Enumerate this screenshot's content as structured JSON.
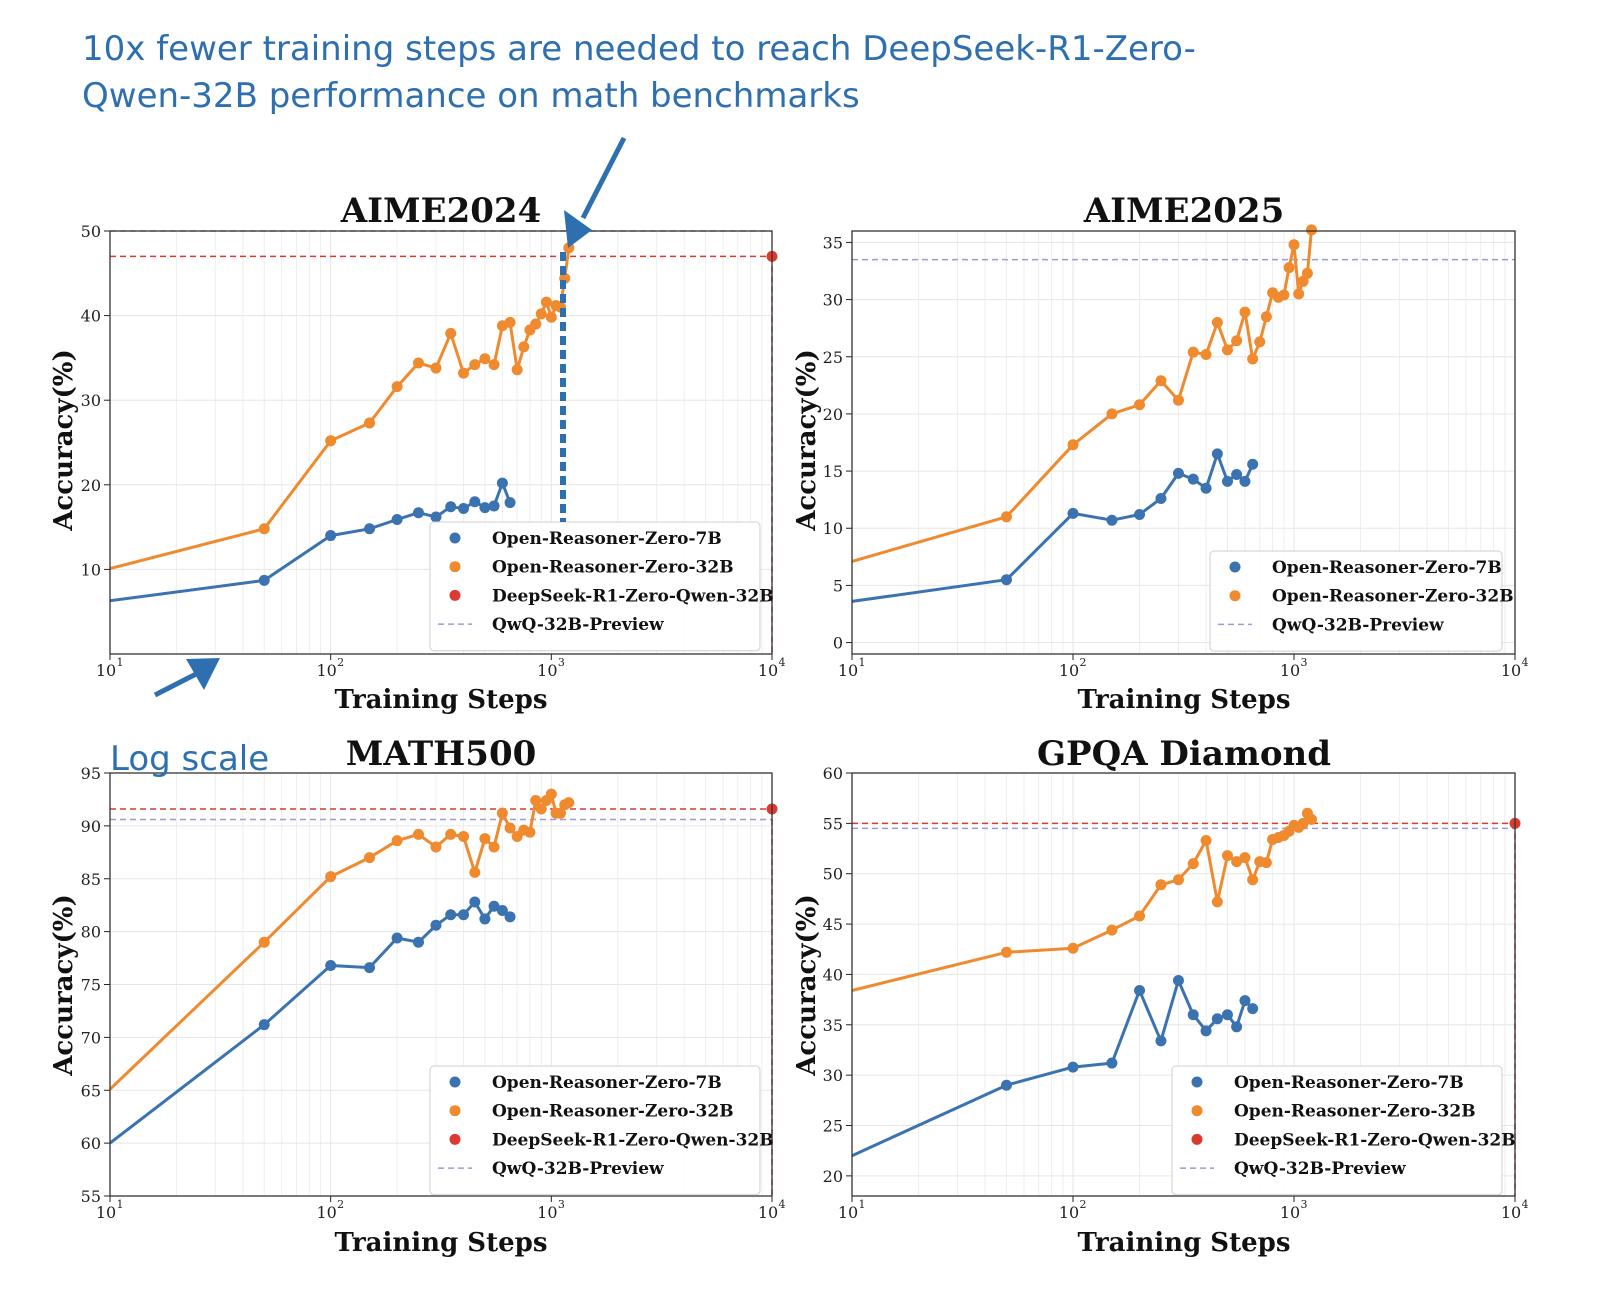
{
  "headline": {
    "line1": "10x fewer training steps are needed to reach DeepSeek-R1-Zero-",
    "line2": "Qwen-32B performance on math benchmarks"
  },
  "annotation_note": "Log scale",
  "colors": {
    "open7b": "#3b72b0",
    "open32b": "#ef8a2e",
    "deepseek": "#dc3a2e",
    "qwq": "#9a9ad8",
    "annotation": "#2e6fb0",
    "grid": "#e6e6e6"
  },
  "chart_data": [
    {
      "type": "line",
      "title": "AIME2024",
      "xlabel": "Training Steps",
      "ylabel": "Accuracy(%)",
      "xscale": "log",
      "xlim": [
        10,
        10000
      ],
      "ylim": [
        0,
        50
      ],
      "yticks": [
        10,
        20,
        30,
        40,
        50
      ],
      "grid": true,
      "legend_position": "lower-right",
      "series": [
        {
          "name": "Open-Reasoner-Zero-7B",
          "color_key": "open7b",
          "x0": 10,
          "y0": 6.3,
          "x": [
            50,
            100,
            150,
            200,
            250,
            300,
            350,
            400,
            450,
            500,
            550,
            600,
            650
          ],
          "y": [
            8.7,
            14.0,
            14.8,
            15.9,
            16.7,
            16.2,
            17.4,
            17.2,
            18.0,
            17.3,
            17.5,
            20.2,
            17.9
          ]
        },
        {
          "name": "Open-Reasoner-Zero-32B",
          "color_key": "open32b",
          "x0": 10,
          "y0": 10.1,
          "x": [
            50,
            100,
            150,
            200,
            250,
            300,
            350,
            400,
            450,
            500,
            550,
            600,
            650,
            700,
            750,
            800,
            850,
            900,
            950,
            1000,
            1050,
            1100,
            1150,
            1200
          ],
          "y": [
            14.8,
            25.2,
            27.3,
            31.6,
            34.4,
            33.8,
            37.9,
            33.2,
            34.2,
            34.9,
            34.2,
            38.8,
            39.2,
            33.6,
            36.3,
            38.3,
            39.0,
            40.2,
            41.6,
            39.8,
            41.2,
            41.0,
            44.4,
            48.0
          ]
        }
      ],
      "reference_points": [
        {
          "name": "DeepSeek-R1-Zero-Qwen-32B",
          "color_key": "deepseek",
          "x": 10000,
          "y": 47.0
        }
      ],
      "reference_lines": [
        {
          "name": "QwQ-32B-Preview",
          "color_key": "qwq",
          "y": 50.0
        }
      ],
      "legend": [
        "Open-Reasoner-Zero-7B",
        "Open-Reasoner-Zero-32B",
        "DeepSeek-R1-Zero-Qwen-32B",
        "QwQ-32B-Preview"
      ]
    },
    {
      "type": "line",
      "title": "AIME2025",
      "xlabel": "Training Steps",
      "ylabel": "Accuracy(%)",
      "xscale": "log",
      "xlim": [
        10,
        10000
      ],
      "ylim": [
        -1,
        36
      ],
      "yticks": [
        0,
        5,
        10,
        15,
        20,
        25,
        30,
        35
      ],
      "grid": true,
      "legend_position": "lower-right",
      "series": [
        {
          "name": "Open-Reasoner-Zero-7B",
          "color_key": "open7b",
          "x0": 10,
          "y0": 3.6,
          "x": [
            50,
            100,
            150,
            200,
            250,
            300,
            350,
            400,
            450,
            500,
            550,
            600,
            650
          ],
          "y": [
            5.5,
            11.3,
            10.7,
            11.2,
            12.6,
            14.8,
            14.3,
            13.5,
            16.5,
            14.1,
            14.7,
            14.1,
            15.6
          ]
        },
        {
          "name": "Open-Reasoner-Zero-32B",
          "color_key": "open32b",
          "x0": 10,
          "y0": 7.1,
          "x": [
            50,
            100,
            150,
            200,
            250,
            300,
            350,
            400,
            450,
            500,
            550,
            600,
            650,
            700,
            750,
            800,
            850,
            900,
            950,
            1000,
            1050,
            1100,
            1150,
            1200
          ],
          "y": [
            11.0,
            17.3,
            20.0,
            20.8,
            22.9,
            21.2,
            25.4,
            25.2,
            28.0,
            25.6,
            26.4,
            28.9,
            24.8,
            26.3,
            28.5,
            30.6,
            30.2,
            30.4,
            32.8,
            34.8,
            30.5,
            31.6,
            32.3,
            36.1
          ]
        }
      ],
      "reference_lines": [
        {
          "name": "QwQ-32B-Preview",
          "color_key": "qwq",
          "y": 33.5
        }
      ],
      "legend": [
        "Open-Reasoner-Zero-7B",
        "Open-Reasoner-Zero-32B",
        "QwQ-32B-Preview"
      ]
    },
    {
      "type": "line",
      "title": "MATH500",
      "xlabel": "Training Steps",
      "ylabel": "Accuracy(%)",
      "xscale": "log",
      "xlim": [
        10,
        10000
      ],
      "ylim": [
        55,
        95
      ],
      "yticks": [
        55,
        60,
        65,
        70,
        75,
        80,
        85,
        90,
        95
      ],
      "grid": true,
      "legend_position": "lower-right",
      "series": [
        {
          "name": "Open-Reasoner-Zero-7B",
          "color_key": "open7b",
          "x0": 10,
          "y0": 60.0,
          "x": [
            50,
            100,
            150,
            200,
            250,
            300,
            350,
            400,
            450,
            500,
            550,
            600,
            650
          ],
          "y": [
            71.2,
            76.8,
            76.6,
            79.4,
            79.0,
            80.6,
            81.6,
            81.6,
            82.8,
            81.2,
            82.4,
            82.0,
            81.4
          ]
        },
        {
          "name": "Open-Reasoner-Zero-32B",
          "color_key": "open32b",
          "x0": 10,
          "y0": 65.1,
          "x": [
            50,
            100,
            150,
            200,
            250,
            300,
            350,
            400,
            450,
            500,
            550,
            600,
            650,
            700,
            750,
            800,
            850,
            900,
            950,
            1000,
            1050,
            1100,
            1150,
            1200
          ],
          "y": [
            79.0,
            85.2,
            87.0,
            88.6,
            89.2,
            88.0,
            89.2,
            89.0,
            85.6,
            88.8,
            88.0,
            91.2,
            89.8,
            89.0,
            89.6,
            89.4,
            92.4,
            91.6,
            92.4,
            93.0,
            91.2,
            91.2,
            92.0,
            92.2
          ]
        }
      ],
      "reference_points": [
        {
          "name": "DeepSeek-R1-Zero-Qwen-32B",
          "color_key": "deepseek",
          "x": 10000,
          "y": 91.6
        }
      ],
      "reference_lines": [
        {
          "name": "QwQ-32B-Preview",
          "color_key": "qwq",
          "y": 90.6
        }
      ],
      "legend": [
        "Open-Reasoner-Zero-7B",
        "Open-Reasoner-Zero-32B",
        "DeepSeek-R1-Zero-Qwen-32B",
        "QwQ-32B-Preview"
      ]
    },
    {
      "type": "line",
      "title": "GPQA Diamond",
      "xlabel": "Training Steps",
      "ylabel": "Accuracy(%)",
      "xscale": "log",
      "xlim": [
        10,
        10000
      ],
      "ylim": [
        18,
        60
      ],
      "yticks": [
        20,
        25,
        30,
        35,
        40,
        45,
        50,
        55,
        60
      ],
      "grid": true,
      "legend_position": "lower-right",
      "series": [
        {
          "name": "Open-Reasoner-Zero-7B",
          "color_key": "open7b",
          "x0": 10,
          "y0": 22.0,
          "x": [
            50,
            100,
            150,
            200,
            250,
            300,
            350,
            400,
            450,
            500,
            550,
            600,
            650
          ],
          "y": [
            29.0,
            30.8,
            31.2,
            38.4,
            33.4,
            39.4,
            36.0,
            34.4,
            35.6,
            36.0,
            34.8,
            37.4,
            36.6
          ]
        },
        {
          "name": "Open-Reasoner-Zero-32B",
          "color_key": "open32b",
          "x0": 10,
          "y0": 38.4,
          "x": [
            50,
            100,
            150,
            200,
            250,
            300,
            350,
            400,
            450,
            500,
            550,
            600,
            650,
            700,
            750,
            800,
            850,
            900,
            950,
            1000,
            1050,
            1100,
            1150,
            1200
          ],
          "y": [
            42.2,
            42.6,
            44.4,
            45.8,
            48.9,
            49.4,
            51.0,
            53.3,
            47.2,
            51.8,
            51.2,
            51.6,
            49.4,
            51.2,
            51.1,
            53.4,
            53.6,
            53.8,
            54.2,
            54.8,
            54.6,
            55.0,
            56.0,
            55.4
          ]
        }
      ],
      "reference_points": [
        {
          "name": "DeepSeek-R1-Zero-Qwen-32B",
          "color_key": "deepseek",
          "x": 10000,
          "y": 55.0
        }
      ],
      "reference_lines": [
        {
          "name": "QwQ-32B-Preview",
          "color_key": "qwq",
          "y": 54.5
        }
      ],
      "legend": [
        "Open-Reasoner-Zero-7B",
        "Open-Reasoner-Zero-32B",
        "DeepSeek-R1-Zero-Qwen-32B",
        "QwQ-32B-Preview"
      ]
    }
  ]
}
